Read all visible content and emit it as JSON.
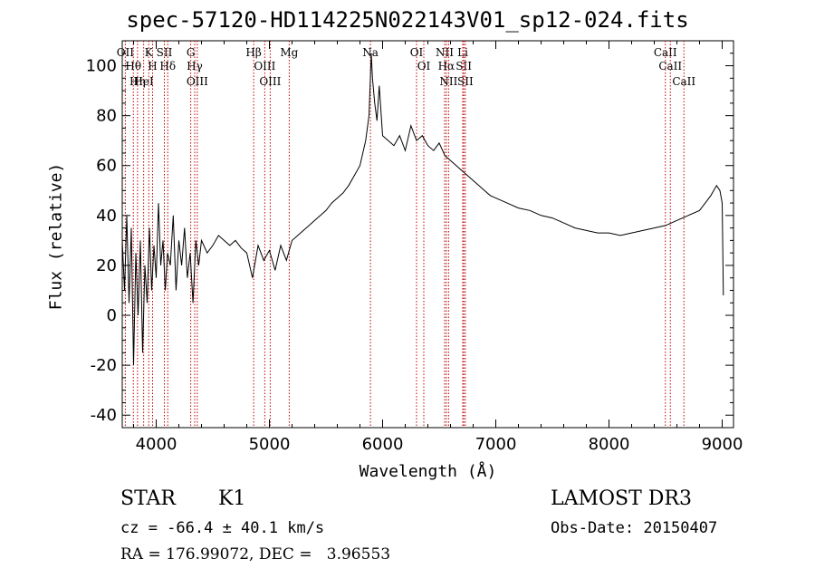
{
  "chart_data": {
    "type": "line",
    "title": "spec-57120-HD114225N022143V01_sp12-024.fits",
    "xlabel": "Wavelength (Å)",
    "ylabel": "Flux (relative)",
    "xlim": [
      3700,
      9100
    ],
    "ylim": [
      -45,
      110
    ],
    "x_ticks": [
      4000,
      5000,
      6000,
      7000,
      8000,
      9000
    ],
    "y_ticks": [
      -40,
      -20,
      0,
      20,
      40,
      60,
      80,
      100
    ],
    "line_color": "#000000",
    "marker_color": "#c00000",
    "series": [
      {
        "x": [
          3700,
          3720,
          3740,
          3760,
          3780,
          3800,
          3820,
          3840,
          3860,
          3880,
          3900,
          3920,
          3940,
          3960,
          3980,
          4000,
          4020,
          4040,
          4060,
          4080,
          4100,
          4125,
          4150,
          4175,
          4200,
          4225,
          4250,
          4275,
          4300,
          4325,
          4350,
          4375,
          4400,
          4450,
          4500,
          4550,
          4600,
          4650,
          4700,
          4750,
          4800,
          4850,
          4900,
          4950,
          5000,
          5050,
          5100,
          5150,
          5200,
          5250,
          5300,
          5350,
          5400,
          5450,
          5500,
          5550,
          5600,
          5650,
          5700,
          5750,
          5800,
          5850,
          5880,
          5900,
          5910,
          5930,
          5950,
          5970,
          6000,
          6050,
          6100,
          6150,
          6200,
          6250,
          6300,
          6350,
          6400,
          6450,
          6500,
          6550,
          6600,
          6650,
          6700,
          6750,
          6800,
          6850,
          6900,
          6950,
          7000,
          7100,
          7200,
          7300,
          7400,
          7500,
          7600,
          7700,
          7800,
          7900,
          8000,
          8100,
          8200,
          8300,
          8400,
          8500,
          8600,
          8700,
          8800,
          8850,
          8900,
          8950,
          8980,
          9000,
          9010
        ],
        "y": [
          30,
          10,
          40,
          5,
          35,
          -20,
          25,
          0,
          30,
          -15,
          20,
          5,
          35,
          10,
          28,
          15,
          45,
          20,
          30,
          10,
          25,
          20,
          40,
          10,
          30,
          20,
          35,
          15,
          25,
          5,
          30,
          20,
          30,
          25,
          28,
          32,
          30,
          28,
          30,
          27,
          25,
          15,
          28,
          22,
          26,
          18,
          28,
          22,
          30,
          32,
          34,
          36,
          38,
          40,
          42,
          45,
          47,
          49,
          52,
          56,
          60,
          70,
          80,
          105,
          95,
          85,
          78,
          92,
          72,
          70,
          68,
          72,
          66,
          76,
          70,
          72,
          68,
          66,
          69,
          64,
          62,
          60,
          58,
          56,
          54,
          52,
          50,
          48,
          47,
          45,
          43,
          42,
          40,
          39,
          37,
          35,
          34,
          33,
          33,
          32,
          33,
          34,
          35,
          36,
          38,
          40,
          42,
          45,
          48,
          52,
          50,
          45,
          8
        ]
      }
    ],
    "line_markers": [
      {
        "name": "OII",
        "wavelength": 3727
      },
      {
        "name": "Hθ",
        "wavelength": 3798
      },
      {
        "name": "Hη",
        "wavelength": 3835
      },
      {
        "name": "HeI",
        "wavelength": 3889
      },
      {
        "name": "K",
        "wavelength": 3934
      },
      {
        "name": "H",
        "wavelength": 3968
      },
      {
        "name": "SII",
        "wavelength": 4072
      },
      {
        "name": "Hδ",
        "wavelength": 4102
      },
      {
        "name": "G",
        "wavelength": 4305
      },
      {
        "name": "Hγ",
        "wavelength": 4340
      },
      {
        "name": "OIII",
        "wavelength": 4363
      },
      {
        "name": "Hβ",
        "wavelength": 4861
      },
      {
        "name": "OIII",
        "wavelength": 4959
      },
      {
        "name": "OIII",
        "wavelength": 5007
      },
      {
        "name": "Mg",
        "wavelength": 5175
      },
      {
        "name": "Na",
        "wavelength": 5893
      },
      {
        "name": "OI",
        "wavelength": 6300
      },
      {
        "name": "OI",
        "wavelength": 6364
      },
      {
        "name": "NII",
        "wavelength": 6548
      },
      {
        "name": "Hα",
        "wavelength": 6563
      },
      {
        "name": "NII",
        "wavelength": 6583
      },
      {
        "name": "Li",
        "wavelength": 6708
      },
      {
        "name": "SII",
        "wavelength": 6717
      },
      {
        "name": "SII",
        "wavelength": 6731
      },
      {
        "name": "CaII",
        "wavelength": 8498
      },
      {
        "name": "CaII",
        "wavelength": 8542
      },
      {
        "name": "CaII",
        "wavelength": 8662
      }
    ]
  },
  "info": {
    "object_class": "STAR",
    "subclass": "K1",
    "survey": "LAMOST DR3",
    "redshift_line": "cz = -66.4 ± 40.1 km/s",
    "obs_date_line": "Obs-Date: 20150407",
    "coords_line": "RA = 176.99072, DEC =   3.96553"
  }
}
